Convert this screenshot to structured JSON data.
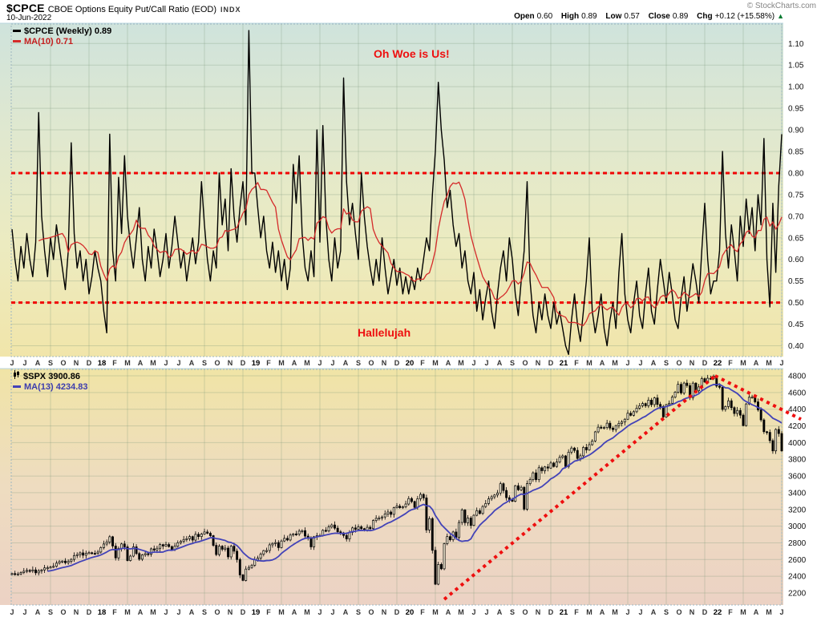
{
  "header": {
    "symbol": "$CPCE",
    "title": "CBOE Options Equity Put/Call Ratio (EOD)",
    "exchange": "INDX",
    "date": "10-Jun-2022",
    "copyright": "© StockCharts.com",
    "quote": {
      "open_label": "Open",
      "open": "0.60",
      "high_label": "High",
      "high": "0.89",
      "low_label": "Low",
      "low": "0.57",
      "close_label": "Close",
      "close": "0.89",
      "chg_label": "Chg",
      "chg": "+0.12 (+15.58%)",
      "direction": "▲"
    }
  },
  "colors": {
    "annotation_red": "#ee0f0f",
    "hline_red": "#f00505",
    "ma_red": "#d42a2a",
    "ma_blue": "#4343b8",
    "price_black": "#000000",
    "up_triangle_green": "#00792e",
    "grid": "rgba(120,150,120,0.30)",
    "plot_border": "#9db6c0",
    "top_gradient": [
      "#cfe3dc",
      "#e0e8cf",
      "#ecebc0",
      "#f1e5aa"
    ],
    "bottom_gradient": [
      "#f0e4a6",
      "#eedcc0",
      "#ecd2c4"
    ]
  },
  "x_axis_labels": [
    "J",
    "J",
    "A",
    "S",
    "O",
    "N",
    "D",
    "18",
    "F",
    "M",
    "A",
    "M",
    "J",
    "J",
    "A",
    "S",
    "O",
    "N",
    "D",
    "19",
    "F",
    "M",
    "A",
    "M",
    "J",
    "J",
    "A",
    "S",
    "O",
    "N",
    "D",
    "20",
    "F",
    "M",
    "A",
    "M",
    "J",
    "J",
    "A",
    "S",
    "O",
    "N",
    "D",
    "21",
    "F",
    "M",
    "A",
    "M",
    "J",
    "J",
    "A",
    "S",
    "O",
    "N",
    "D",
    "22",
    "F",
    "M",
    "A",
    "M",
    "J"
  ],
  "chart_data": [
    {
      "type": "line",
      "name": "$CPCE weekly put/call ratio",
      "legend": [
        {
          "label": "$CPCE (Weekly)",
          "value": "0.89",
          "color": "#000000"
        },
        {
          "label": "MA(10)",
          "value": "0.71",
          "color": "#d42a2a"
        }
      ],
      "ylim": [
        0.375,
        1.145
      ],
      "yticks": [
        "1.10",
        "1.05",
        "1.00",
        "0.95",
        "0.90",
        "0.85",
        "0.80",
        "0.75",
        "0.70",
        "0.65",
        "0.60",
        "0.55",
        "0.50",
        "0.45",
        "0.40"
      ],
      "grid": true,
      "ma_period": 10,
      "hlines": [
        0.8,
        0.5
      ],
      "annotations": [
        {
          "text": "Oh Woe is Us!"
        },
        {
          "text": "Hallelujah"
        }
      ],
      "weekly_values": [
        0.67,
        0.6,
        0.55,
        0.63,
        0.58,
        0.66,
        0.6,
        0.56,
        0.64,
        0.94,
        0.7,
        0.62,
        0.56,
        0.65,
        0.6,
        0.68,
        0.63,
        0.58,
        0.53,
        0.62,
        0.87,
        0.66,
        0.58,
        0.62,
        0.55,
        0.6,
        0.52,
        0.56,
        0.62,
        0.58,
        0.55,
        0.48,
        0.43,
        0.89,
        0.62,
        0.55,
        0.79,
        0.66,
        0.84,
        0.7,
        0.63,
        0.58,
        0.65,
        0.72,
        0.6,
        0.55,
        0.63,
        0.58,
        0.67,
        0.62,
        0.56,
        0.6,
        0.66,
        0.58,
        0.63,
        0.7,
        0.64,
        0.58,
        0.62,
        0.55,
        0.6,
        0.65,
        0.59,
        0.64,
        0.78,
        0.68,
        0.6,
        0.55,
        0.62,
        0.58,
        0.8,
        0.68,
        0.74,
        0.62,
        0.81,
        0.7,
        0.64,
        0.72,
        0.78,
        0.68,
        1.13,
        0.8,
        0.8,
        0.72,
        0.65,
        0.7,
        0.62,
        0.58,
        0.64,
        0.57,
        0.62,
        0.55,
        0.6,
        0.53,
        0.58,
        0.82,
        0.73,
        0.84,
        0.66,
        0.58,
        0.55,
        0.62,
        0.56,
        0.9,
        0.64,
        0.91,
        0.7,
        0.6,
        0.55,
        0.65,
        0.58,
        0.62,
        1.02,
        0.78,
        0.68,
        0.73,
        0.66,
        0.6,
        0.8,
        0.7,
        0.63,
        0.58,
        0.54,
        0.6,
        0.55,
        0.65,
        0.58,
        0.52,
        0.56,
        0.6,
        0.54,
        0.58,
        0.52,
        0.56,
        0.52,
        0.56,
        0.53,
        0.58,
        0.55,
        0.6,
        0.65,
        0.62,
        0.75,
        0.85,
        1.01,
        0.9,
        0.83,
        0.72,
        0.76,
        0.68,
        0.63,
        0.66,
        0.58,
        0.62,
        0.55,
        0.52,
        0.57,
        0.48,
        0.53,
        0.46,
        0.51,
        0.55,
        0.48,
        0.44,
        0.52,
        0.58,
        0.62,
        0.55,
        0.65,
        0.6,
        0.52,
        0.47,
        0.55,
        0.62,
        0.78,
        0.55,
        0.47,
        0.43,
        0.5,
        0.46,
        0.52,
        0.47,
        0.44,
        0.5,
        0.45,
        0.48,
        0.44,
        0.4,
        0.38,
        0.46,
        0.52,
        0.45,
        0.41,
        0.48,
        0.55,
        0.65,
        0.48,
        0.43,
        0.47,
        0.52,
        0.44,
        0.4,
        0.46,
        0.5,
        0.44,
        0.57,
        0.66,
        0.52,
        0.46,
        0.43,
        0.5,
        0.55,
        0.47,
        0.44,
        0.52,
        0.58,
        0.48,
        0.45,
        0.53,
        0.6,
        0.55,
        0.5,
        0.57,
        0.52,
        0.46,
        0.44,
        0.51,
        0.56,
        0.48,
        0.53,
        0.59,
        0.55,
        0.5,
        0.62,
        0.73,
        0.6,
        0.52,
        0.55,
        0.55,
        0.62,
        0.85,
        0.66,
        0.58,
        0.68,
        0.62,
        0.55,
        0.7,
        0.63,
        0.74,
        0.66,
        0.72,
        0.62,
        0.75,
        0.68,
        0.88,
        0.6,
        0.49,
        0.73,
        0.57,
        0.77,
        0.89
      ]
    },
    {
      "type": "candlestick",
      "name": "$SPX weekly",
      "legend": [
        {
          "label": "$SPX",
          "value": "3900.86",
          "color": "#000000"
        },
        {
          "label": "MA(13)",
          "value": "4234.83",
          "color": "#3c3cae"
        }
      ],
      "ylim": [
        2056,
        4877
      ],
      "yticks": [
        "4800",
        "4600",
        "4400",
        "4200",
        "4000",
        "3800",
        "3600",
        "3400",
        "3200",
        "3000",
        "2800",
        "2600",
        "2400",
        "2200"
      ],
      "grid": true,
      "ma_period": 13,
      "trendlines": [
        {
          "w1": 146,
          "p1": 2124,
          "w2": 237.5,
          "p2": 4800
        },
        {
          "w1": 237.5,
          "p1": 4800,
          "w2": 266.5,
          "p2": 4280
        }
      ],
      "weekly_closes": [
        2432,
        2420,
        2428,
        2445,
        2460,
        2470,
        2466,
        2476,
        2441,
        2465,
        2476,
        2500,
        2502,
        2510,
        2519,
        2557,
        2575,
        2582,
        2562,
        2578,
        2602,
        2648,
        2659,
        2680,
        2652,
        2675,
        2682,
        2674,
        2673,
        2690,
        2743,
        2786,
        2810,
        2873,
        2762,
        2620,
        2732,
        2787,
        2752,
        2588,
        2641,
        2752,
        2672,
        2604,
        2656,
        2670,
        2663,
        2728,
        2713,
        2735,
        2779,
        2762,
        2780,
        2755,
        2718,
        2760,
        2801,
        2818,
        2840,
        2850,
        2875,
        2833,
        2902,
        2875,
        2905,
        2930,
        2915,
        2886,
        2770,
        2660,
        2760,
        2723,
        2737,
        2632,
        2760,
        2700,
        2600,
        2416,
        2350,
        2486,
        2506,
        2532,
        2596,
        2616,
        2665,
        2707,
        2708,
        2776,
        2793,
        2803,
        2743,
        2822,
        2854,
        2834,
        2893,
        2907,
        2905,
        2940,
        2946,
        2881,
        2860,
        2752,
        2873,
        2887,
        2887,
        2950,
        2942,
        2990,
        3014,
        2976,
        2932,
        2919,
        2889,
        2847,
        2926,
        2979,
        2962,
        2992,
        2970,
        2952,
        2986,
        2970,
        3067,
        3093,
        3097,
        3110,
        3146,
        3169,
        3141,
        3221,
        3240,
        3221,
        3231,
        3265,
        3330,
        3295,
        3225,
        3328,
        3380,
        3338,
        2954,
        3090,
        2711,
        2305,
        2542,
        2489,
        2790,
        2875,
        2837,
        2930,
        2864,
        3044,
        3194,
        3041,
        3097,
        3009,
        3130,
        3185,
        3152,
        3235,
        3271,
        3327,
        3351,
        3373,
        3397,
        3508,
        3427,
        3341,
        3319,
        3298,
        3484,
        3435,
        3465,
        3204,
        3509,
        3558,
        3638,
        3557,
        3699,
        3663,
        3709,
        3695,
        3756,
        3714,
        3768,
        3824,
        3841,
        3714,
        3886,
        3935,
        3907,
        3811,
        3842,
        3943,
        3913,
        3975,
        4020,
        4129,
        4185,
        4180,
        4181,
        4233,
        4174,
        4156,
        4204,
        4230,
        4247,
        4280,
        4352,
        4327,
        4370,
        4412,
        4442,
        4468,
        4441,
        4509,
        4455,
        4535,
        4458,
        4433,
        4308,
        4455,
        4471,
        4545,
        4605,
        4698,
        4595,
        4713,
        4683,
        4539,
        4712,
        4621,
        4667,
        4766,
        4726,
        4771,
        4766,
        4796,
        4677,
        4663,
        4398,
        4432,
        4501,
        4419,
        4349,
        4385,
        4329,
        4204,
        4463,
        4543,
        4546,
        4488,
        4393,
        4272,
        4131,
        4123,
        4024,
        3901,
        4158,
        4109,
        3901
      ]
    }
  ]
}
